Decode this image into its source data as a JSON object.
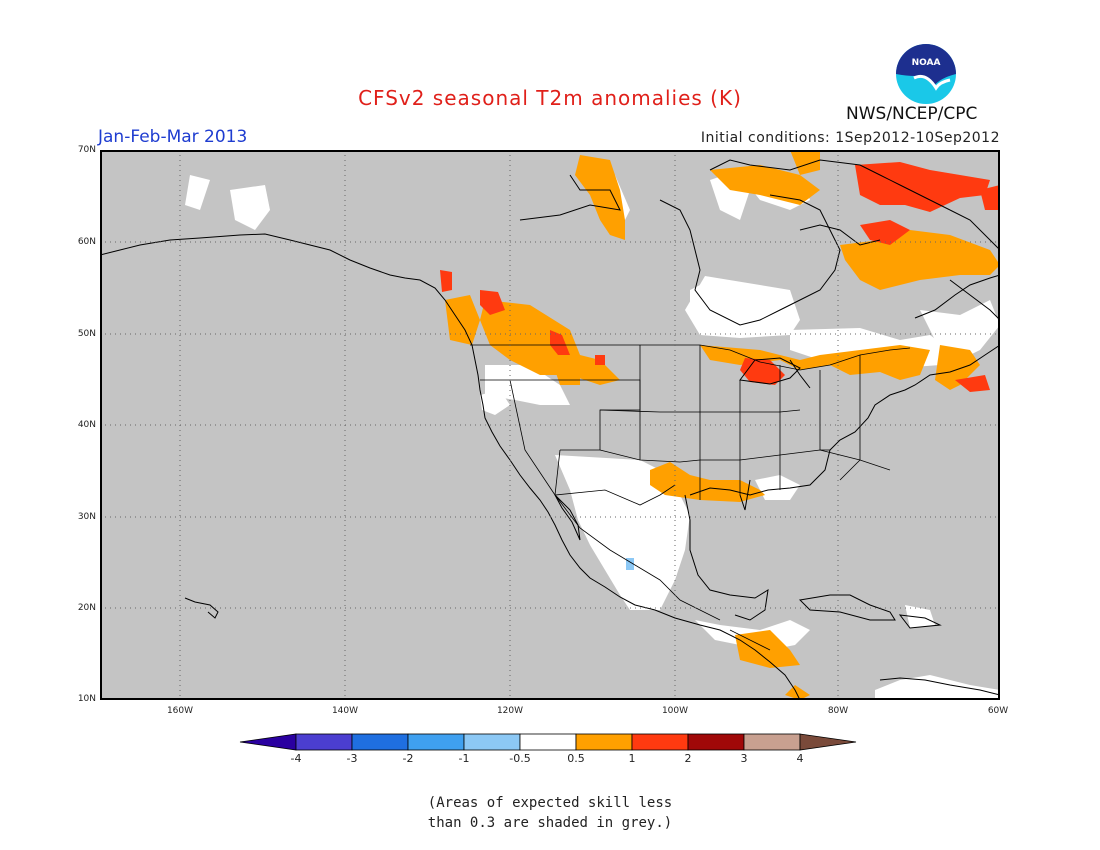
{
  "title": "CFSv2 seasonal T2m anomalies (K)",
  "period": "Jan-Feb-Mar 2013",
  "initial_conditions": "Initial conditions: 1Sep2012-10Sep2012",
  "agency": "NWS/NCEP/CPC",
  "logo_text": "NOAA",
  "lat_labels": [
    "70N",
    "60N",
    "50N",
    "40N",
    "30N",
    "20N",
    "10N"
  ],
  "lon_labels": [
    "160W",
    "140W",
    "120W",
    "100W",
    "80W",
    "60W"
  ],
  "colorbar": {
    "ticks": [
      "-4",
      "-3",
      "-2",
      "-1",
      "-0.5",
      "0.5",
      "1",
      "2",
      "3",
      "4"
    ],
    "colors": [
      "#2a00a0",
      "#4b3ed0",
      "#1f6fe0",
      "#3fa0f0",
      "#8cc8f5",
      "#ffffff",
      "#ffa000",
      "#ff3a10",
      "#a00808",
      "#c8a090",
      "#7a4a3a"
    ]
  },
  "skill_note_line1": "(Areas of expected skill less",
  "skill_note_line2": "than 0.3 are shaded in grey.)",
  "colors": {
    "grey_low_skill": "#c4c4c4",
    "no_anomaly": "#ffffff",
    "warm_0_5_1": "#ffa000",
    "warm_1_2": "#ff3a10",
    "cool_m1_m0_5": "#8cc8f5"
  }
}
